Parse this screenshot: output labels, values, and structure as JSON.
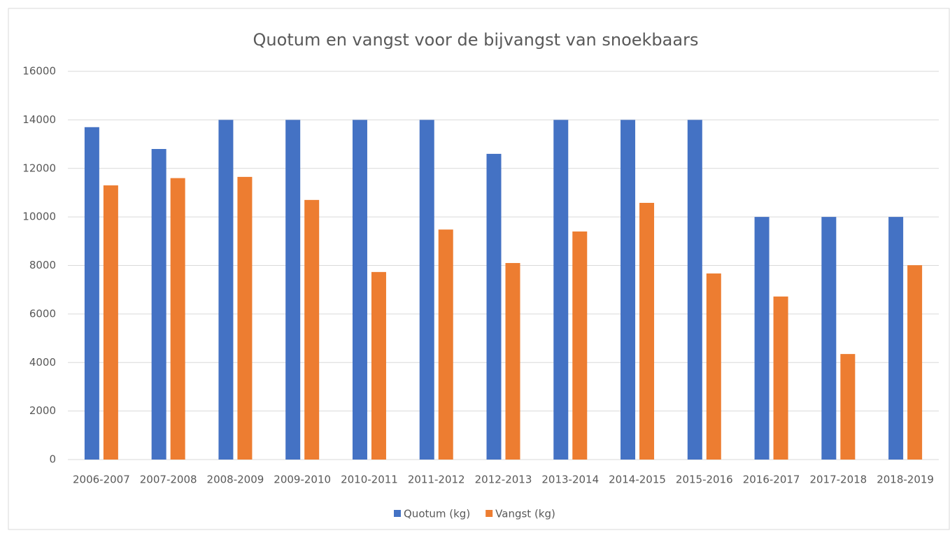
{
  "chart_data": {
    "type": "bar",
    "title": "Quotum en vangst voor de bijvangst van snoekbaars",
    "categories": [
      "2006-2007",
      "2007-2008",
      "2008-2009",
      "2009-2010",
      "2010-2011",
      "2011-2012",
      "2012-2013",
      "2013-2014",
      "2014-2015",
      "2015-2016",
      "2016-2017",
      "2017-2018",
      "2018-2019"
    ],
    "series": [
      {
        "name": "Quotum (kg)",
        "color": "#4472c4",
        "values": [
          13700,
          12800,
          14000,
          14000,
          14000,
          14000,
          12600,
          14000,
          14000,
          14000,
          10000,
          10000,
          10000
        ]
      },
      {
        "name": "Vangst (kg)",
        "color": "#ed7d31",
        "values": [
          11300,
          11600,
          11650,
          10700,
          7730,
          9480,
          8100,
          9400,
          10580,
          7670,
          6720,
          4350,
          8010
        ]
      }
    ],
    "ylim": [
      0,
      16000
    ],
    "yticks": [
      0,
      2000,
      4000,
      6000,
      8000,
      10000,
      12000,
      14000,
      16000
    ],
    "grid": true,
    "legend": "bottom"
  }
}
